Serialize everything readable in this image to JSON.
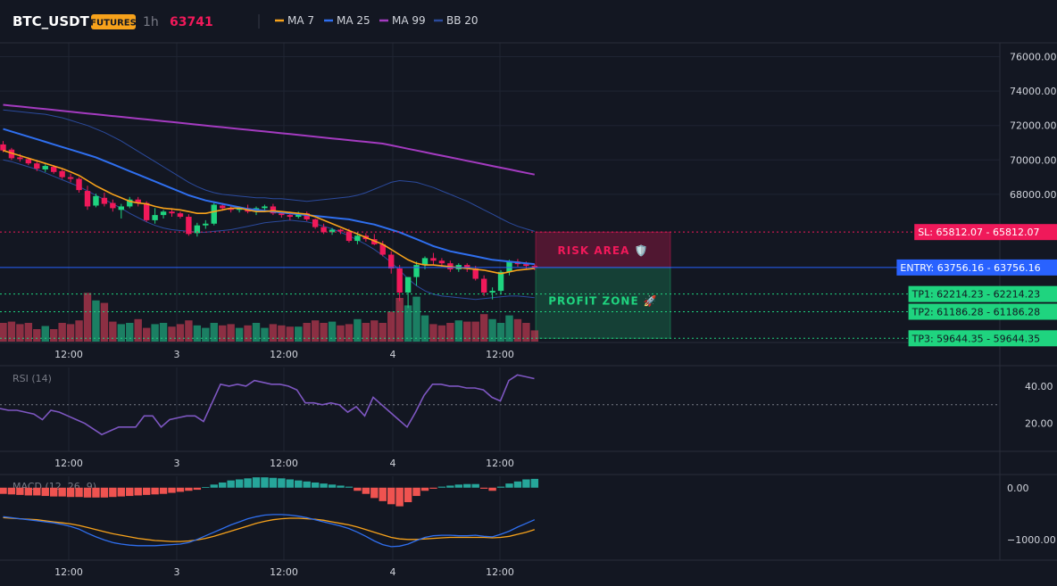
{
  "header": {
    "symbol": "BTC_USDT",
    "badge": "FUTURES",
    "timeframe": "1h",
    "price": "63741",
    "legend": [
      {
        "label": "MA 7",
        "color": "#f7a21b"
      },
      {
        "label": "MA 25",
        "color": "#2f6fef"
      },
      {
        "label": "MA 99",
        "color": "#a43bc0"
      },
      {
        "label": "BB 20",
        "color": "#2b4a9c"
      }
    ]
  },
  "colors": {
    "bg": "#131722",
    "grid": "#1f2433",
    "up": "#1fd47f",
    "down": "#f0195a",
    "text": "#d1d4dc",
    "muted": "#787b86"
  },
  "chart_data": {
    "type": "candlestick",
    "time_labels": [
      "12:00",
      "3",
      "12:00",
      "4",
      "12:00"
    ],
    "price_axis": {
      "ticks": [
        "76000.00",
        "74000.00",
        "72000.00",
        "70000.00",
        "68000.00"
      ],
      "ylim": [
        59400,
        76800
      ]
    },
    "candles": [
      {
        "o": 70900,
        "h": 71100,
        "l": 70450,
        "c": 70550
      },
      {
        "o": 70600,
        "h": 70700,
        "l": 70000,
        "c": 70100
      },
      {
        "o": 70150,
        "h": 70350,
        "l": 69900,
        "c": 70050
      },
      {
        "o": 70050,
        "h": 70150,
        "l": 69700,
        "c": 69800
      },
      {
        "o": 69800,
        "h": 70000,
        "l": 69350,
        "c": 69500
      },
      {
        "o": 69450,
        "h": 69750,
        "l": 69300,
        "c": 69650
      },
      {
        "o": 69600,
        "h": 69700,
        "l": 69200,
        "c": 69300
      },
      {
        "o": 69350,
        "h": 69450,
        "l": 68900,
        "c": 69000
      },
      {
        "o": 69000,
        "h": 69200,
        "l": 68700,
        "c": 68900
      },
      {
        "o": 68900,
        "h": 69000,
        "l": 68100,
        "c": 68250
      },
      {
        "o": 68200,
        "h": 68500,
        "l": 67100,
        "c": 67300
      },
      {
        "o": 67350,
        "h": 68050,
        "l": 67250,
        "c": 67900
      },
      {
        "o": 67800,
        "h": 68100,
        "l": 67300,
        "c": 67450
      },
      {
        "o": 67500,
        "h": 67700,
        "l": 67000,
        "c": 67200
      },
      {
        "o": 67100,
        "h": 67450,
        "l": 66600,
        "c": 67300
      },
      {
        "o": 67300,
        "h": 67850,
        "l": 67200,
        "c": 67700
      },
      {
        "o": 67700,
        "h": 67850,
        "l": 67300,
        "c": 67500
      },
      {
        "o": 67500,
        "h": 67600,
        "l": 66400,
        "c": 66500
      },
      {
        "o": 66500,
        "h": 67200,
        "l": 66300,
        "c": 66800
      },
      {
        "o": 66800,
        "h": 67100,
        "l": 66600,
        "c": 67000
      },
      {
        "o": 67000,
        "h": 67200,
        "l": 66700,
        "c": 66900
      },
      {
        "o": 66900,
        "h": 67000,
        "l": 66600,
        "c": 66700
      },
      {
        "o": 66700,
        "h": 66850,
        "l": 65600,
        "c": 65700
      },
      {
        "o": 65750,
        "h": 66350,
        "l": 65550,
        "c": 66200
      },
      {
        "o": 66200,
        "h": 66500,
        "l": 66000,
        "c": 66300
      },
      {
        "o": 66300,
        "h": 67500,
        "l": 66200,
        "c": 67400
      },
      {
        "o": 67350,
        "h": 67500,
        "l": 67050,
        "c": 67200
      },
      {
        "o": 67200,
        "h": 67350,
        "l": 66950,
        "c": 67100
      },
      {
        "o": 67100,
        "h": 67300,
        "l": 66950,
        "c": 67200
      },
      {
        "o": 67200,
        "h": 67400,
        "l": 66900,
        "c": 67000
      },
      {
        "o": 67000,
        "h": 67300,
        "l": 66800,
        "c": 67200
      },
      {
        "o": 67200,
        "h": 67400,
        "l": 67050,
        "c": 67300
      },
      {
        "o": 67300,
        "h": 67450,
        "l": 66800,
        "c": 66900
      },
      {
        "o": 66900,
        "h": 67000,
        "l": 66650,
        "c": 66800
      },
      {
        "o": 66800,
        "h": 67000,
        "l": 66500,
        "c": 66700
      },
      {
        "o": 66700,
        "h": 67000,
        "l": 66600,
        "c": 66900
      },
      {
        "o": 66900,
        "h": 67000,
        "l": 66450,
        "c": 66550
      },
      {
        "o": 66550,
        "h": 66600,
        "l": 66000,
        "c": 66100
      },
      {
        "o": 66100,
        "h": 66300,
        "l": 65700,
        "c": 65800
      },
      {
        "o": 65800,
        "h": 66050,
        "l": 65650,
        "c": 65950
      },
      {
        "o": 65950,
        "h": 66000,
        "l": 65700,
        "c": 65850
      },
      {
        "o": 65850,
        "h": 66000,
        "l": 65200,
        "c": 65300
      },
      {
        "o": 65300,
        "h": 65800,
        "l": 65100,
        "c": 65600
      },
      {
        "o": 65600,
        "h": 65750,
        "l": 65250,
        "c": 65400
      },
      {
        "o": 65400,
        "h": 65700,
        "l": 65050,
        "c": 65100
      },
      {
        "o": 65100,
        "h": 65300,
        "l": 64400,
        "c": 64500
      },
      {
        "o": 64500,
        "h": 64700,
        "l": 63400,
        "c": 63700
      },
      {
        "o": 63700,
        "h": 63900,
        "l": 61800,
        "c": 62300
      },
      {
        "o": 62300,
        "h": 63200,
        "l": 61400,
        "c": 63200
      },
      {
        "o": 63200,
        "h": 64100,
        "l": 62700,
        "c": 63900
      },
      {
        "o": 63900,
        "h": 64400,
        "l": 63650,
        "c": 64300
      },
      {
        "o": 64300,
        "h": 64600,
        "l": 63900,
        "c": 64150
      },
      {
        "o": 64150,
        "h": 64300,
        "l": 63800,
        "c": 64000
      },
      {
        "o": 64000,
        "h": 64150,
        "l": 63500,
        "c": 63650
      },
      {
        "o": 63650,
        "h": 64000,
        "l": 63500,
        "c": 63900
      },
      {
        "o": 63900,
        "h": 64000,
        "l": 63500,
        "c": 63700
      },
      {
        "o": 63700,
        "h": 63850,
        "l": 63000,
        "c": 63100
      },
      {
        "o": 63100,
        "h": 63300,
        "l": 62100,
        "c": 62300
      },
      {
        "o": 62300,
        "h": 62600,
        "l": 61900,
        "c": 62400
      },
      {
        "o": 62400,
        "h": 63600,
        "l": 62200,
        "c": 63500
      },
      {
        "o": 63500,
        "h": 64200,
        "l": 63300,
        "c": 64100
      },
      {
        "o": 64100,
        "h": 64250,
        "l": 63800,
        "c": 63950
      },
      {
        "o": 63950,
        "h": 64100,
        "l": 63650,
        "c": 63850
      },
      {
        "o": 63850,
        "h": 63950,
        "l": 63600,
        "c": 63741
      }
    ],
    "volumes": [
      0.3,
      0.32,
      0.28,
      0.3,
      0.2,
      0.25,
      0.2,
      0.3,
      0.28,
      0.34,
      0.78,
      0.66,
      0.62,
      0.32,
      0.28,
      0.3,
      0.36,
      0.22,
      0.28,
      0.3,
      0.24,
      0.28,
      0.34,
      0.26,
      0.22,
      0.3,
      0.26,
      0.28,
      0.22,
      0.26,
      0.3,
      0.22,
      0.28,
      0.26,
      0.24,
      0.24,
      0.3,
      0.34,
      0.3,
      0.32,
      0.26,
      0.28,
      0.36,
      0.3,
      0.34,
      0.3,
      0.48,
      0.7,
      0.58,
      0.72,
      0.42,
      0.28,
      0.26,
      0.3,
      0.34,
      0.32,
      0.32,
      0.44,
      0.36,
      0.3,
      0.42,
      0.36,
      0.3,
      0.18
    ],
    "ma7": [
      70550,
      70400,
      70250,
      70100,
      69950,
      69800,
      69650,
      69500,
      69300,
      69100,
      68800,
      68500,
      68250,
      68000,
      67800,
      67600,
      67500,
      67450,
      67300,
      67200,
      67150,
      67100,
      67000,
      66900,
      66900,
      67000,
      67100,
      67200,
      67200,
      67100,
      67000,
      67000,
      67050,
      67000,
      66950,
      66900,
      66850,
      66700,
      66500,
      66300,
      66100,
      65900,
      65700,
      65500,
      65300,
      65100,
      64800,
      64500,
      64200,
      64000,
      63900,
      63900,
      63850,
      63800,
      63750,
      63700,
      63650,
      63600,
      63500,
      63400,
      63500,
      63600,
      63650,
      63700
    ],
    "ma25": [
      71800,
      71650,
      71500,
      71350,
      71200,
      71050,
      70900,
      70750,
      70600,
      70450,
      70300,
      70150,
      69950,
      69750,
      69550,
      69350,
      69150,
      68950,
      68750,
      68550,
      68350,
      68150,
      67950,
      67800,
      67650,
      67550,
      67450,
      67350,
      67250,
      67150,
      67100,
      67050,
      67000,
      66950,
      66900,
      66850,
      66800,
      66750,
      66700,
      66650,
      66600,
      66550,
      66450,
      66350,
      66250,
      66100,
      65950,
      65800,
      65600,
      65400,
      65200,
      65000,
      64850,
      64700,
      64600,
      64500,
      64400,
      64300,
      64200,
      64150,
      64100,
      64050,
      64000,
      63950
    ],
    "ma99": [
      73200,
      73150,
      73100,
      73050,
      73000,
      72950,
      72900,
      72850,
      72800,
      72750,
      72700,
      72650,
      72600,
      72550,
      72500,
      72450,
      72400,
      72350,
      72300,
      72250,
      72200,
      72150,
      72100,
      72050,
      72000,
      71950,
      71900,
      71850,
      71800,
      71750,
      71700,
      71650,
      71600,
      71550,
      71500,
      71450,
      71400,
      71350,
      71300,
      71250,
      71200,
      71150,
      71100,
      71050,
      71000,
      70950,
      70850,
      70750,
      70650,
      70550,
      70450,
      70350,
      70250,
      70150,
      70050,
      69950,
      69850,
      69750,
      69650,
      69550,
      69450,
      69350,
      69250,
      69150
    ],
    "bb_upper": [
      72900,
      72850,
      72800,
      72750,
      72700,
      72650,
      72550,
      72450,
      72300,
      72150,
      72000,
      71800,
      71600,
      71350,
      71100,
      70800,
      70500,
      70200,
      69900,
      69600,
      69300,
      69000,
      68700,
      68450,
      68250,
      68100,
      68000,
      67950,
      67900,
      67850,
      67800,
      67800,
      67750,
      67750,
      67700,
      67650,
      67600,
      67650,
      67700,
      67750,
      67800,
      67850,
      67950,
      68100,
      68300,
      68500,
      68700,
      68800,
      68750,
      68700,
      68550,
      68400,
      68200,
      68000,
      67800,
      67600,
      67350,
      67100,
      66850,
      66600,
      66350,
      66150,
      66000,
      65850
    ],
    "bb_lower": [
      70000,
      69900,
      69750,
      69600,
      69450,
      69250,
      69050,
      68850,
      68650,
      68450,
      68200,
      67950,
      67700,
      67450,
      67200,
      66900,
      66650,
      66400,
      66200,
      66050,
      65950,
      65900,
      65850,
      65800,
      65800,
      65850,
      65900,
      65950,
      66050,
      66150,
      66250,
      66350,
      66400,
      66450,
      66500,
      66450,
      66400,
      66300,
      66150,
      66000,
      65800,
      65600,
      65350,
      65100,
      64800,
      64450,
      64050,
      63600,
      63100,
      62700,
      62400,
      62200,
      62100,
      62050,
      62000,
      61950,
      61900,
      61950,
      62000,
      62050,
      62100,
      62100,
      62050,
      62000
    ],
    "levels": [
      {
        "name": "SL",
        "value": 65812.07,
        "label": "SL: 65812.07",
        "axis": "65812.07",
        "color": "#f0195a"
      },
      {
        "name": "ENTRY",
        "value": 63756.16,
        "label": "ENTRY: 63756.16",
        "axis": "63756.16",
        "color": "#2962ff"
      },
      {
        "name": "TP1",
        "value": 62214.23,
        "label": "TP1: 62214.23",
        "axis": "62214.23",
        "color": "#1fd47f"
      },
      {
        "name": "TP2",
        "value": 61186.28,
        "label": "TP2: 61186.28",
        "axis": "61186.28",
        "color": "#1fd47f"
      },
      {
        "name": "TP3",
        "value": 59644.35,
        "label": "TP3: 59644.35",
        "axis": "59644.35",
        "color": "#1fd47f"
      }
    ],
    "zones": {
      "risk_label": "RISK AREA 🛡️",
      "profit_label": "PROFIT ZONE 🚀"
    },
    "rsi": {
      "title": "RSI (14)",
      "ticks": [
        "40.00",
        "20.00"
      ],
      "ylim": [
        5,
        50
      ],
      "level": 30,
      "values": [
        28,
        27,
        27,
        26,
        25,
        22,
        27,
        26,
        24,
        22,
        20,
        17,
        14,
        16,
        18,
        18,
        18,
        24,
        24,
        18,
        22,
        23,
        24,
        24,
        21,
        31,
        41,
        40,
        41,
        40,
        43,
        42,
        41,
        41,
        40,
        38,
        31,
        31,
        30,
        31,
        30,
        26,
        29,
        24,
        34,
        30,
        26,
        22,
        18,
        26,
        35,
        41,
        41,
        40,
        40,
        39,
        39,
        38,
        34,
        32,
        43,
        46,
        45,
        44
      ]
    },
    "macd": {
      "title": "MACD (12, 26, 9)",
      "ticks": [
        "0.00",
        "−1000.00"
      ],
      "ylim": [
        -1400,
        220
      ],
      "hist": [
        -120,
        -130,
        -140,
        -150,
        -150,
        -160,
        -170,
        -170,
        -180,
        -180,
        -190,
        -190,
        -190,
        -180,
        -170,
        -160,
        -150,
        -140,
        -130,
        -120,
        -100,
        -80,
        -60,
        -40,
        10,
        60,
        100,
        140,
        160,
        180,
        200,
        200,
        190,
        180,
        160,
        140,
        120,
        100,
        80,
        60,
        40,
        20,
        -60,
        -120,
        -200,
        -260,
        -320,
        -360,
        -280,
        -160,
        -60,
        -20,
        20,
        40,
        60,
        70,
        70,
        -20,
        -60,
        20,
        80,
        120,
        160,
        170
      ],
      "macd_line": [
        -560,
        -580,
        -600,
        -620,
        -640,
        -660,
        -680,
        -710,
        -750,
        -800,
        -880,
        -950,
        -1010,
        -1060,
        -1090,
        -1110,
        -1120,
        -1120,
        -1120,
        -1110,
        -1100,
        -1090,
        -1060,
        -1000,
        -930,
        -860,
        -790,
        -720,
        -660,
        -600,
        -560,
        -530,
        -520,
        -520,
        -530,
        -550,
        -580,
        -620,
        -660,
        -700,
        -740,
        -790,
        -860,
        -940,
        -1030,
        -1100,
        -1140,
        -1130,
        -1090,
        -1020,
        -960,
        -930,
        -920,
        -920,
        -930,
        -930,
        -920,
        -940,
        -950,
        -900,
        -840,
        -760,
        -690,
        -620
      ],
      "signal_line": [
        -580,
        -590,
        -600,
        -610,
        -620,
        -640,
        -660,
        -680,
        -700,
        -730,
        -770,
        -810,
        -850,
        -890,
        -920,
        -950,
        -980,
        -1000,
        -1020,
        -1030,
        -1040,
        -1040,
        -1030,
        -1010,
        -980,
        -940,
        -890,
        -840,
        -790,
        -740,
        -690,
        -650,
        -620,
        -600,
        -590,
        -590,
        -600,
        -610,
        -630,
        -660,
        -690,
        -720,
        -760,
        -810,
        -860,
        -910,
        -960,
        -990,
        -1000,
        -1000,
        -990,
        -980,
        -970,
        -960,
        -960,
        -960,
        -960,
        -960,
        -970,
        -960,
        -940,
        -900,
        -860,
        -810
      ]
    }
  }
}
